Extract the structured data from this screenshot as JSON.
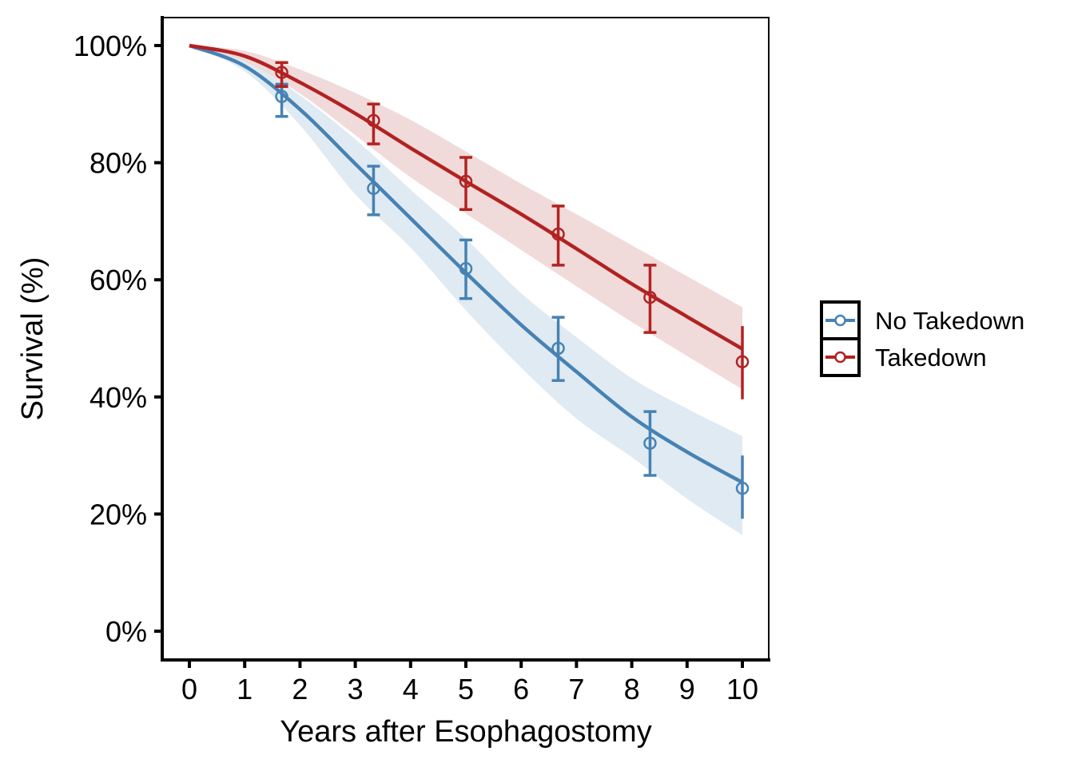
{
  "chart_data": {
    "type": "line",
    "title": "",
    "xlabel": "Years after Esophagostomy",
    "ylabel": "Survival (%)",
    "xlim": [
      -0.5,
      10.5
    ],
    "ylim": [
      -5,
      105
    ],
    "x_ticks": [
      0,
      1,
      2,
      3,
      4,
      5,
      6,
      7,
      8,
      9,
      10
    ],
    "x_tick_labels": [
      "0",
      "1",
      "2",
      "3",
      "4",
      "5",
      "6",
      "7",
      "8",
      "9",
      "10"
    ],
    "y_ticks": [
      0,
      20,
      40,
      60,
      80,
      100
    ],
    "y_tick_labels": [
      "0%",
      "20%",
      "40%",
      "60%",
      "80%",
      "100%"
    ],
    "grid": false,
    "legend": {
      "position": "right",
      "entries": [
        "No Takedown",
        "Takedown"
      ]
    },
    "series": [
      {
        "name": "No Takedown",
        "color": "#4682B4",
        "band_color": "#DAE6F0",
        "curve": {
          "x": [
            0,
            1,
            2,
            3,
            4,
            5,
            6,
            7,
            8,
            9,
            10
          ],
          "y": [
            100,
            96.5,
            89.1,
            79.8,
            70.5,
            61.2,
            52.3,
            44.3,
            36.6,
            30.6,
            25.4
          ]
        },
        "band": {
          "x": [
            0,
            1,
            2,
            3,
            4,
            5,
            6,
            7,
            8,
            9,
            10
          ],
          "lower": [
            100,
            95.6,
            86.4,
            74.6,
            65.5,
            54.8,
            45.0,
            36.3,
            29.7,
            22.6,
            16.4
          ],
          "upper": [
            100,
            97.6,
            91.5,
            84.0,
            75.4,
            67.0,
            57.7,
            50.2,
            43.2,
            38.0,
            33.3
          ]
        },
        "points": {
          "x": [
            1.67,
            3.33,
            5.0,
            6.67,
            8.33,
            10.0
          ],
          "y": [
            91.3,
            75.6,
            61.9,
            48.3,
            32.1,
            24.4
          ],
          "lower": [
            87.9,
            71.1,
            56.8,
            42.8,
            26.6,
            19.2
          ],
          "upper": [
            93.4,
            79.4,
            66.8,
            53.6,
            37.5,
            30.0
          ]
        }
      },
      {
        "name": "Takedown",
        "color": "#B22222",
        "band_color": "#EFD3D3",
        "curve": {
          "x": [
            0,
            1,
            2,
            3,
            4,
            5,
            6,
            7,
            8,
            9,
            10
          ],
          "y": [
            100,
            98.2,
            93.7,
            88.4,
            82.5,
            76.8,
            71.2,
            65.3,
            59.3,
            53.7,
            48.2
          ]
        },
        "band": {
          "x": [
            0,
            1,
            2,
            3,
            4,
            5,
            6,
            7,
            8,
            9,
            10
          ],
          "lower": [
            100,
            97.3,
            91.8,
            84.7,
            77.5,
            71.3,
            65.1,
            58.9,
            52.8,
            47.0,
            41.3
          ],
          "upper": [
            100,
            99.1,
            95.9,
            91.9,
            87.3,
            81.9,
            76.4,
            71.2,
            65.9,
            60.6,
            55.3
          ]
        },
        "points": {
          "x": [
            1.67,
            3.33,
            5.0,
            6.67,
            8.33,
            10.0
          ],
          "y": [
            95.4,
            87.2,
            76.8,
            67.8,
            57.0,
            46.0
          ],
          "lower": [
            93.0,
            83.2,
            72.0,
            62.5,
            51.0,
            39.6
          ],
          "upper": [
            97.1,
            90.0,
            80.9,
            72.6,
            62.5,
            52.1
          ]
        }
      }
    ]
  }
}
